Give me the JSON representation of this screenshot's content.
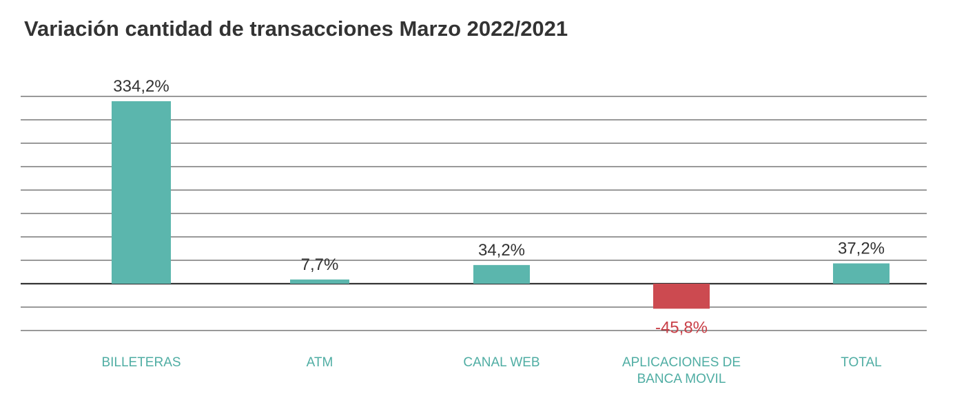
{
  "title": "Variación cantidad de transacciones Marzo 2022/2021",
  "colors": {
    "positive": "#5bb6ad",
    "negative": "#cc4a50",
    "positive_label": "#333333",
    "negative_label": "#c94048",
    "category": "#4fada3",
    "gridline": "#333333"
  },
  "chart_data": {
    "type": "bar",
    "title": "Variación cantidad de transacciones Marzo 2022/2021",
    "categories": [
      [
        "BILLETERAS"
      ],
      [
        "ATM"
      ],
      [
        "CANAL WEB"
      ],
      [
        "APLICACIONES DE",
        "BANCA MOVIL"
      ],
      [
        "TOTAL"
      ]
    ],
    "values": [
      334.2,
      7.7,
      34.2,
      -45.8,
      37.2
    ],
    "value_labels": [
      "334,2%",
      "7,7%",
      "34,2%",
      "-45,8%",
      "37,2%"
    ],
    "unit": "%",
    "xlabel": "",
    "ylabel": "",
    "ylim": [
      -85,
      350
    ],
    "grid": true,
    "legend": "none"
  }
}
